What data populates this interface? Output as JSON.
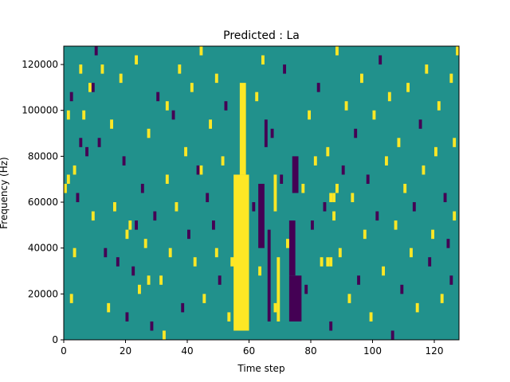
{
  "chart_data": {
    "type": "heatmap",
    "title": "Predicted : La",
    "xlabel": "Time step",
    "ylabel": "Frequency (Hz)",
    "xlim": [
      0,
      128
    ],
    "ylim": [
      0,
      128000
    ],
    "grid": false,
    "x_ticks": [
      0,
      20,
      40,
      60,
      80,
      100,
      120
    ],
    "x_tick_labels": [
      "0",
      "20",
      "40",
      "60",
      "80",
      "100",
      "120"
    ],
    "y_ticks": [
      0,
      20000,
      40000,
      60000,
      80000,
      100000,
      120000
    ],
    "y_tick_labels": [
      "0",
      "20000",
      "40000",
      "60000",
      "80000",
      "100000",
      "120000"
    ],
    "colormap": "viridis",
    "levels": {
      "low": "#440154",
      "mid": "#21918c",
      "high": "#fde725"
    },
    "background_level": "mid",
    "bins": {
      "time_steps": 128,
      "frequency_bins": 32,
      "bin_height_hz": 4000
    },
    "bands": [
      {
        "level": "high",
        "t_start": 55,
        "t_end": 60,
        "f_start": 4000,
        "f_end": 72000
      },
      {
        "level": "high",
        "t_start": 57,
        "t_end": 59,
        "f_start": 72000,
        "f_end": 112000
      },
      {
        "level": "high",
        "t_start": 54,
        "t_end": 56,
        "f_start": 32000,
        "f_end": 36000
      },
      {
        "level": "low",
        "t_start": 73,
        "t_end": 77,
        "f_start": 8000,
        "f_end": 28000
      },
      {
        "level": "low",
        "t_start": 73,
        "t_end": 75,
        "f_start": 28000,
        "f_end": 52000
      },
      {
        "level": "low",
        "t_start": 63,
        "t_end": 65,
        "f_start": 40000,
        "f_end": 68000
      },
      {
        "level": "low",
        "t_start": 66,
        "t_end": 67,
        "f_start": 8000,
        "f_end": 48000
      },
      {
        "level": "high",
        "t_start": 69,
        "t_end": 70,
        "f_start": 8000,
        "f_end": 36000
      },
      {
        "level": "high",
        "t_start": 68,
        "t_end": 69,
        "f_start": 56000,
        "f_end": 72000
      },
      {
        "level": "low",
        "t_start": 74,
        "t_end": 76,
        "f_start": 64000,
        "f_end": 80000
      },
      {
        "level": "low",
        "t_start": 65,
        "t_end": 66,
        "f_start": 84000,
        "f_end": 96000
      }
    ],
    "cells": [
      {
        "t": 0,
        "f": 16,
        "v": "high"
      },
      {
        "t": 1,
        "f": 24,
        "v": "high"
      },
      {
        "t": 1,
        "f": 17,
        "v": "high"
      },
      {
        "t": 2,
        "f": 4,
        "v": "high"
      },
      {
        "t": 2,
        "f": 26,
        "v": "low"
      },
      {
        "t": 3,
        "f": 18,
        "v": "high"
      },
      {
        "t": 4,
        "f": 15,
        "v": "low"
      },
      {
        "t": 5,
        "f": 29,
        "v": "high"
      },
      {
        "t": 6,
        "f": 24,
        "v": "high"
      },
      {
        "t": 7,
        "f": 20,
        "v": "low"
      },
      {
        "t": 8,
        "f": 27,
        "v": "high"
      },
      {
        "t": 9,
        "f": 13,
        "v": "high"
      },
      {
        "t": 10,
        "f": 31,
        "v": "low"
      },
      {
        "t": 11,
        "f": 21,
        "v": "low"
      },
      {
        "t": 12,
        "f": 29,
        "v": "high"
      },
      {
        "t": 13,
        "f": 9,
        "v": "low"
      },
      {
        "t": 14,
        "f": 3,
        "v": "high"
      },
      {
        "t": 15,
        "f": 23,
        "v": "high"
      },
      {
        "t": 16,
        "f": 14,
        "v": "high"
      },
      {
        "t": 17,
        "f": 8,
        "v": "low"
      },
      {
        "t": 18,
        "f": 28,
        "v": "high"
      },
      {
        "t": 19,
        "f": 19,
        "v": "low"
      },
      {
        "t": 20,
        "f": 11,
        "v": "high"
      },
      {
        "t": 20,
        "f": 2,
        "v": "low"
      },
      {
        "t": 21,
        "f": 12,
        "v": "high"
      },
      {
        "t": 22,
        "f": 7,
        "v": "low"
      },
      {
        "t": 23,
        "f": 30,
        "v": "high"
      },
      {
        "t": 24,
        "f": 5,
        "v": "high"
      },
      {
        "t": 25,
        "f": 16,
        "v": "low"
      },
      {
        "t": 26,
        "f": 10,
        "v": "high"
      },
      {
        "t": 27,
        "f": 22,
        "v": "high"
      },
      {
        "t": 28,
        "f": 1,
        "v": "low"
      },
      {
        "t": 29,
        "f": 13,
        "v": "low"
      },
      {
        "t": 30,
        "f": 26,
        "v": "low"
      },
      {
        "t": 31,
        "f": 6,
        "v": "high"
      },
      {
        "t": 32,
        "f": 0,
        "v": "high"
      },
      {
        "t": 33,
        "f": 17,
        "v": "high"
      },
      {
        "t": 34,
        "f": 9,
        "v": "high"
      },
      {
        "t": 35,
        "f": 24,
        "v": "low"
      },
      {
        "t": 36,
        "f": 14,
        "v": "high"
      },
      {
        "t": 37,
        "f": 29,
        "v": "high"
      },
      {
        "t": 38,
        "f": 3,
        "v": "low"
      },
      {
        "t": 39,
        "f": 20,
        "v": "high"
      },
      {
        "t": 40,
        "f": 11,
        "v": "low"
      },
      {
        "t": 41,
        "f": 27,
        "v": "high"
      },
      {
        "t": 42,
        "f": 8,
        "v": "high"
      },
      {
        "t": 43,
        "f": 18,
        "v": "low"
      },
      {
        "t": 44,
        "f": 31,
        "v": "high"
      },
      {
        "t": 45,
        "f": 4,
        "v": "high"
      },
      {
        "t": 46,
        "f": 15,
        "v": "low"
      },
      {
        "t": 47,
        "f": 23,
        "v": "high"
      },
      {
        "t": 48,
        "f": 12,
        "v": "low"
      },
      {
        "t": 49,
        "f": 28,
        "v": "high"
      },
      {
        "t": 50,
        "f": 6,
        "v": "low"
      },
      {
        "t": 51,
        "f": 19,
        "v": "high"
      },
      {
        "t": 52,
        "f": 25,
        "v": "low"
      },
      {
        "t": 53,
        "f": 2,
        "v": "high"
      },
      {
        "t": 61,
        "f": 14,
        "v": "low"
      },
      {
        "t": 62,
        "f": 26,
        "v": "high"
      },
      {
        "t": 63,
        "f": 7,
        "v": "high"
      },
      {
        "t": 64,
        "f": 30,
        "v": "high"
      },
      {
        "t": 67,
        "f": 22,
        "v": "low"
      },
      {
        "t": 68,
        "f": 3,
        "v": "high"
      },
      {
        "t": 70,
        "f": 17,
        "v": "low"
      },
      {
        "t": 71,
        "f": 29,
        "v": "low"
      },
      {
        "t": 72,
        "f": 10,
        "v": "high"
      },
      {
        "t": 77,
        "f": 16,
        "v": "high"
      },
      {
        "t": 78,
        "f": 5,
        "v": "low"
      },
      {
        "t": 79,
        "f": 24,
        "v": "high"
      },
      {
        "t": 80,
        "f": 12,
        "v": "low"
      },
      {
        "t": 81,
        "f": 19,
        "v": "high"
      },
      {
        "t": 82,
        "f": 27,
        "v": "low"
      },
      {
        "t": 83,
        "f": 8,
        "v": "high"
      },
      {
        "t": 84,
        "f": 14,
        "v": "low"
      },
      {
        "t": 85,
        "f": 20,
        "v": "high"
      },
      {
        "t": 86,
        "f": 1,
        "v": "low"
      },
      {
        "t": 87,
        "f": 13,
        "v": "high"
      },
      {
        "t": 88,
        "f": 31,
        "v": "high"
      },
      {
        "t": 89,
        "f": 9,
        "v": "high"
      },
      {
        "t": 90,
        "f": 18,
        "v": "low"
      },
      {
        "t": 91,
        "f": 25,
        "v": "high"
      },
      {
        "t": 92,
        "f": 4,
        "v": "high"
      },
      {
        "t": 93,
        "f": 15,
        "v": "high"
      },
      {
        "t": 94,
        "f": 22,
        "v": "low"
      },
      {
        "t": 95,
        "f": 6,
        "v": "low"
      },
      {
        "t": 96,
        "f": 28,
        "v": "high"
      },
      {
        "t": 97,
        "f": 11,
        "v": "high"
      },
      {
        "t": 98,
        "f": 17,
        "v": "low"
      },
      {
        "t": 99,
        "f": 2,
        "v": "high"
      },
      {
        "t": 100,
        "f": 24,
        "v": "high"
      },
      {
        "t": 101,
        "f": 13,
        "v": "low"
      },
      {
        "t": 102,
        "f": 30,
        "v": "low"
      },
      {
        "t": 103,
        "f": 7,
        "v": "high"
      },
      {
        "t": 104,
        "f": 19,
        "v": "high"
      },
      {
        "t": 105,
        "f": 26,
        "v": "high"
      },
      {
        "t": 106,
        "f": 0,
        "v": "low"
      },
      {
        "t": 107,
        "f": 12,
        "v": "high"
      },
      {
        "t": 108,
        "f": 21,
        "v": "high"
      },
      {
        "t": 109,
        "f": 5,
        "v": "low"
      },
      {
        "t": 110,
        "f": 16,
        "v": "high"
      },
      {
        "t": 111,
        "f": 27,
        "v": "high"
      },
      {
        "t": 112,
        "f": 9,
        "v": "high"
      },
      {
        "t": 113,
        "f": 14,
        "v": "low"
      },
      {
        "t": 114,
        "f": 3,
        "v": "high"
      },
      {
        "t": 115,
        "f": 23,
        "v": "low"
      },
      {
        "t": 116,
        "f": 18,
        "v": "high"
      },
      {
        "t": 117,
        "f": 29,
        "v": "high"
      },
      {
        "t": 118,
        "f": 8,
        "v": "low"
      },
      {
        "t": 119,
        "f": 11,
        "v": "high"
      },
      {
        "t": 120,
        "f": 20,
        "v": "high"
      },
      {
        "t": 121,
        "f": 25,
        "v": "high"
      },
      {
        "t": 122,
        "f": 4,
        "v": "high"
      },
      {
        "t": 123,
        "f": 15,
        "v": "low"
      },
      {
        "t": 124,
        "f": 10,
        "v": "low"
      },
      {
        "t": 125,
        "f": 28,
        "v": "high"
      },
      {
        "t": 126,
        "f": 21,
        "v": "high"
      },
      {
        "t": 127,
        "f": 31,
        "v": "high"
      },
      {
        "t": 126,
        "f": 13,
        "v": "high"
      },
      {
        "t": 125,
        "f": 6,
        "v": "low"
      },
      {
        "t": 3,
        "f": 9,
        "v": "high"
      },
      {
        "t": 5,
        "f": 21,
        "v": "low"
      },
      {
        "t": 9,
        "f": 27,
        "v": "low"
      },
      {
        "t": 23,
        "f": 12,
        "v": "low"
      },
      {
        "t": 27,
        "f": 6,
        "v": "high"
      },
      {
        "t": 33,
        "f": 25,
        "v": "high"
      },
      {
        "t": 44,
        "f": 18,
        "v": "high"
      },
      {
        "t": 49,
        "f": 9,
        "v": "high"
      },
      {
        "t": 86,
        "f": 15,
        "v": "high"
      },
      {
        "t": 87,
        "f": 15,
        "v": "high"
      },
      {
        "t": 88,
        "f": 16,
        "v": "high"
      },
      {
        "t": 85,
        "f": 8,
        "v": "high"
      },
      {
        "t": 86,
        "f": 8,
        "v": "high"
      }
    ]
  }
}
